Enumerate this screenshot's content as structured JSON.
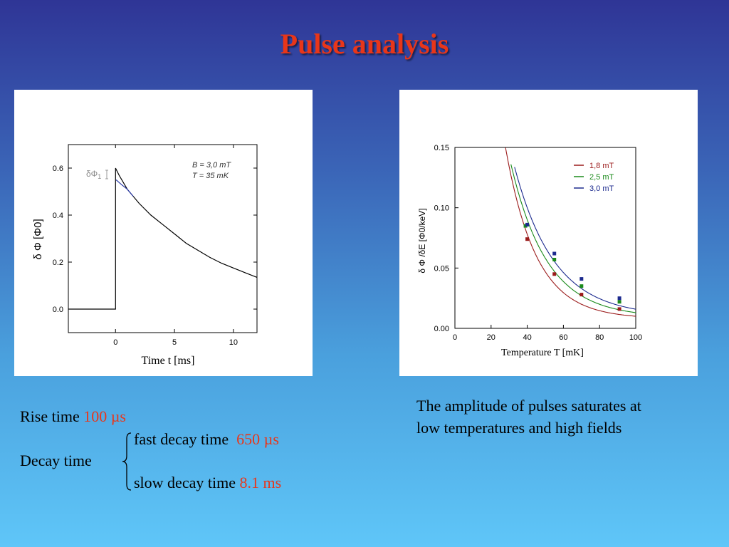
{
  "title": "Pulse analysis",
  "left_figure": {
    "legend_line1": "B = 3,0 mT",
    "legend_line2": "T = 35 mK",
    "delta_label": "δΦ",
    "delta_sub": "1",
    "xlabel": "Time t [ms]",
    "ylabel": "δ Φ [Φ0]",
    "x_ticks": [
      "0",
      "5",
      "10"
    ],
    "y_ticks": [
      "0.0",
      "0.2",
      "0.4",
      "0.6"
    ]
  },
  "right_figure": {
    "xlabel": "Temperature T [mK]",
    "ylabel": "δ Φ /δE [Φ0/keV]",
    "x_ticks": [
      "0",
      "20",
      "40",
      "60",
      "80",
      "100"
    ],
    "y_ticks": [
      "0.00",
      "0.05",
      "0.10",
      "0.15"
    ],
    "legend": [
      "1,8 mT",
      "2,5 mT",
      "3,0 mT"
    ],
    "colors": [
      "#9b1b1b",
      "#1a8a1a",
      "#1c2a8e"
    ]
  },
  "chart_data": [
    {
      "type": "line",
      "title": "",
      "xlabel": "Time t [ms]",
      "ylabel": "δ Φ [Φ0]",
      "xlim": [
        -4,
        12
      ],
      "ylim": [
        -0.1,
        0.7
      ],
      "annotations": [
        "B = 3,0 mT",
        "T = 35 mK",
        "δΦ1"
      ],
      "series": [
        {
          "x": [
            -4,
            0,
            0,
            0.1,
            0.3,
            1,
            2,
            3,
            4,
            5,
            6,
            7,
            8,
            9,
            10,
            11,
            12
          ],
          "y": [
            0,
            0,
            0.6,
            0.59,
            0.57,
            0.51,
            0.45,
            0.4,
            0.36,
            0.32,
            0.28,
            0.25,
            0.22,
            0.195,
            0.175,
            0.155,
            0.135
          ]
        }
      ]
    },
    {
      "type": "scatter",
      "title": "",
      "xlabel": "Temperature T [mK]",
      "ylabel": "δ Φ /δE [Φ0/keV]",
      "xlim": [
        0,
        100
      ],
      "ylim": [
        0,
        0.15
      ],
      "series": [
        {
          "name": "1,8 mT",
          "x": [
            40,
            55,
            70,
            91
          ],
          "y": [
            0.074,
            0.045,
            0.028,
            0.016
          ]
        },
        {
          "name": "2,5 mT",
          "x": [
            39,
            55,
            70,
            91
          ],
          "y": [
            0.085,
            0.057,
            0.035,
            0.022
          ]
        },
        {
          "name": "3,0 mT",
          "x": [
            40,
            55,
            70,
            91
          ],
          "y": [
            0.086,
            0.062,
            0.041,
            0.025
          ]
        }
      ]
    }
  ],
  "text_left": {
    "rise_label": "Rise time",
    "rise_value": "100 µs",
    "decay_label": "Decay time",
    "fast_label": "fast decay time",
    "fast_value": "650 µs",
    "slow_label": "slow decay time",
    "slow_value": "8.1 ms"
  },
  "text_right": {
    "line1": "The amplitude of pulses saturates at",
    "line2": "low temperatures  and high fields"
  }
}
